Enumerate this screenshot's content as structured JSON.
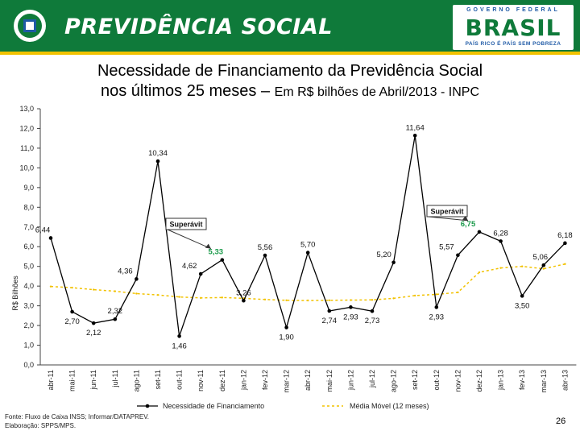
{
  "header": {
    "brand": "PREVIDÊNCIA SOCIAL",
    "gov_label": "GOVERNO FEDERAL",
    "gov_country": "BRASIL",
    "gov_tagline": "PAÍS RICO É PAÍS SEM POBREZA",
    "colors": {
      "green": "#0f7a3a",
      "yellow": "#f2c200",
      "blue": "#1f5aa6"
    }
  },
  "title_line1": "Necessidade de Financiamento da Previdência Social",
  "title_line2_main": "nos últimos 25 meses – ",
  "title_line2_sub": "Em R$ bilhões de Abril/2013 - INPC",
  "footer": {
    "source": "Fonte: Fluxo de Caixa INSS; Informar/DATAPREV.",
    "credit": "Elaboração: SPPS/MPS."
  },
  "page_number": "26",
  "chart_data": {
    "type": "line",
    "title": "Necessidade de Financiamento da Previdência Social nos últimos 25 meses – Em R$ bilhões de Abril/2013 - INPC",
    "ylabel": "R$ Bilhões",
    "ylim": [
      0,
      13
    ],
    "yticks": [
      "0,0",
      "1,0",
      "2,0",
      "3,0",
      "4,0",
      "5,0",
      "6,0",
      "7,0",
      "8,0",
      "9,0",
      "10,0",
      "11,0",
      "12,0",
      "13,0"
    ],
    "categories": [
      "abr-11",
      "mai-11",
      "jun-11",
      "jul-11",
      "ago-11",
      "set-11",
      "out-11",
      "nov-11",
      "dez-11",
      "jan-12",
      "fev-12",
      "mar-12",
      "abr-12",
      "mai-12",
      "jun-12",
      "jul-12",
      "ago-12",
      "set-12",
      "out-12",
      "nov-12",
      "dez-12",
      "jan-13",
      "fev-13",
      "mar-13",
      "abr-13"
    ],
    "series": [
      {
        "name": "Necessidade de Financiamento",
        "color": "#000000",
        "values": [
          6.44,
          2.7,
          2.12,
          2.32,
          4.36,
          10.34,
          1.46,
          4.62,
          5.33,
          3.26,
          5.56,
          1.9,
          5.7,
          2.74,
          2.93,
          2.73,
          5.2,
          11.64,
          2.93,
          5.57,
          6.75,
          6.28,
          3.5,
          5.06,
          6.18
        ],
        "labels": [
          "6,44",
          "2,70",
          "2,12",
          "2,32",
          "4,36",
          "10,34",
          "1,46",
          "4,62",
          "5,33",
          "3,26",
          "5,56",
          "1,90",
          "5,70",
          "2,74",
          "2,93",
          "2,73",
          "5,20",
          "11,64",
          "2,93",
          "5,57",
          "6,75",
          "6,28",
          "3,50",
          "5,06",
          "6,18"
        ]
      },
      {
        "name": "Média Móvel (12 meses)",
        "color": "#f2c200",
        "values": [
          3.98,
          3.92,
          3.82,
          3.74,
          3.62,
          3.55,
          3.45,
          3.4,
          3.42,
          3.38,
          3.32,
          3.28,
          3.27,
          3.28,
          3.29,
          3.3,
          3.38,
          3.52,
          3.58,
          3.68,
          4.7,
          4.92,
          5.0,
          4.88,
          5.12
        ]
      }
    ],
    "highlight_color": "#1a9a4a",
    "annotations": [
      {
        "text": "Superávit",
        "points_to": "dez-11"
      },
      {
        "text": "Superávit",
        "points_to": "dez-12"
      }
    ],
    "legend": "bottom"
  }
}
